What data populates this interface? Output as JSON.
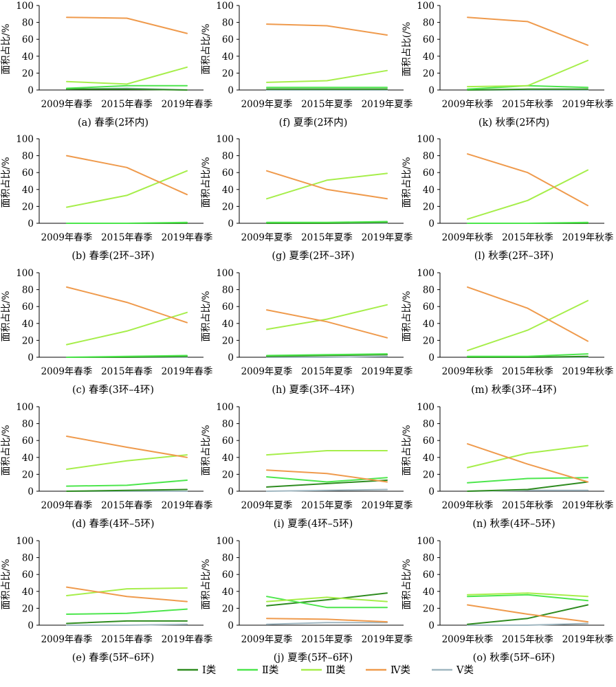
{
  "colors": {
    "I": "#2e8b1f",
    "II": "#4ce64c",
    "III": "#a6ee4a",
    "IV": "#ef9a4c",
    "V": "#9fb6c0"
  },
  "legend": [
    {
      "key": "I",
      "label": "Ⅰ类"
    },
    {
      "key": "II",
      "label": "Ⅱ类"
    },
    {
      "key": "III",
      "label": "Ⅲ类"
    },
    {
      "key": "IV",
      "label": "Ⅳ类"
    },
    {
      "key": "V",
      "label": "Ⅴ类"
    }
  ],
  "chart_data": [
    {
      "type": "line",
      "caption": "(a) 春季(2环内)",
      "ylabel": "面积占比/%",
      "ylim": [
        0,
        100
      ],
      "yticks": [
        "0",
        "20",
        "40",
        "60",
        "80",
        "100"
      ],
      "categories": [
        "2009年春季",
        "2015年春季",
        "2019年春季"
      ],
      "series": [
        {
          "name": "Ⅰ类",
          "values": [
            1,
            1,
            0
          ]
        },
        {
          "name": "Ⅱ类",
          "values": [
            2,
            5,
            5
          ]
        },
        {
          "name": "Ⅲ类",
          "values": [
            10,
            7,
            27
          ]
        },
        {
          "name": "Ⅳ类",
          "values": [
            86,
            85,
            67
          ]
        },
        {
          "name": "Ⅴ类",
          "values": [
            1,
            2,
            0
          ]
        }
      ]
    },
    {
      "type": "line",
      "caption": "(f) 夏季(2环内)",
      "ylabel": "面积占比/%",
      "ylim": [
        0,
        100
      ],
      "yticks": [
        "0",
        "20",
        "40",
        "60",
        "80",
        "100"
      ],
      "categories": [
        "2009年夏季",
        "2015年夏季",
        "2019年夏季"
      ],
      "series": [
        {
          "name": "Ⅰ类",
          "values": [
            1,
            1,
            1
          ]
        },
        {
          "name": "Ⅱ类",
          "values": [
            3,
            3,
            3
          ]
        },
        {
          "name": "Ⅲ类",
          "values": [
            9,
            11,
            23
          ]
        },
        {
          "name": "Ⅳ类",
          "values": [
            78,
            76,
            65
          ]
        },
        {
          "name": "Ⅴ类",
          "values": [
            0,
            0,
            0
          ]
        }
      ]
    },
    {
      "type": "line",
      "caption": "(k) 秋季(2环内)",
      "ylabel": "面积占比(/%",
      "ylim": [
        0,
        100
      ],
      "yticks": [
        "0",
        "20",
        "40",
        "60",
        "80",
        "100"
      ],
      "categories": [
        "2009年秋季",
        "2015年秋季",
        "2019年秋季"
      ],
      "series": [
        {
          "name": "Ⅰ类",
          "values": [
            0,
            1,
            1
          ]
        },
        {
          "name": "Ⅱ类",
          "values": [
            1,
            5,
            3
          ]
        },
        {
          "name": "Ⅲ类",
          "values": [
            4,
            5,
            35
          ]
        },
        {
          "name": "Ⅳ类",
          "values": [
            86,
            81,
            53
          ]
        },
        {
          "name": "Ⅴ类",
          "values": [
            0,
            0,
            0
          ]
        }
      ]
    },
    {
      "type": "line",
      "caption": "(b) 春季(2环–3环)",
      "ylabel": "面积占比/%",
      "ylim": [
        0,
        100
      ],
      "yticks": [
        "0",
        "20",
        "40",
        "60",
        "80",
        "100"
      ],
      "categories": [
        "2009年春季",
        "2015年春季",
        "2019年春季"
      ],
      "series": [
        {
          "name": "Ⅰ类",
          "values": [
            0,
            0,
            0
          ]
        },
        {
          "name": "Ⅱ类",
          "values": [
            0,
            0,
            1
          ]
        },
        {
          "name": "Ⅲ类",
          "values": [
            19,
            33,
            62
          ]
        },
        {
          "name": "Ⅳ类",
          "values": [
            80,
            66,
            34
          ]
        },
        {
          "name": "Ⅴ类",
          "values": [
            0,
            0,
            0
          ]
        }
      ]
    },
    {
      "type": "line",
      "caption": "(g) 夏季(2环–3环)",
      "ylabel": "面积占比/%",
      "ylim": [
        0,
        100
      ],
      "yticks": [
        "0",
        "20",
        "40",
        "60",
        "80",
        "100"
      ],
      "categories": [
        "2009年夏季",
        "2015年夏季",
        "2019年夏季"
      ],
      "series": [
        {
          "name": "Ⅰ类",
          "values": [
            0,
            0,
            1
          ]
        },
        {
          "name": "Ⅱ类",
          "values": [
            1,
            1,
            2
          ]
        },
        {
          "name": "Ⅲ类",
          "values": [
            29,
            51,
            59
          ]
        },
        {
          "name": "Ⅳ类",
          "values": [
            62,
            40,
            29
          ]
        },
        {
          "name": "Ⅴ类",
          "values": [
            0,
            0,
            0
          ]
        }
      ]
    },
    {
      "type": "line",
      "caption": "(l) 秋季(2环–3环)",
      "ylabel": "面积占比/%",
      "ylim": [
        0,
        100
      ],
      "yticks": [
        "0",
        "20",
        "40",
        "60",
        "80",
        "100"
      ],
      "categories": [
        "2009年秋季",
        "2015年秋季",
        "2019年秋季"
      ],
      "series": [
        {
          "name": "Ⅰ类",
          "values": [
            0,
            0,
            0
          ]
        },
        {
          "name": "Ⅱ类",
          "values": [
            0,
            0,
            1
          ]
        },
        {
          "name": "Ⅲ类",
          "values": [
            5,
            27,
            63
          ]
        },
        {
          "name": "Ⅳ类",
          "values": [
            82,
            60,
            21
          ]
        },
        {
          "name": "Ⅴ类",
          "values": [
            0,
            0,
            0
          ]
        }
      ]
    },
    {
      "type": "line",
      "caption": "(c) 春季(3环–4环)",
      "ylabel": "面积占比/%",
      "ylim": [
        0,
        100
      ],
      "yticks": [
        "0",
        "20",
        "40",
        "60",
        "80",
        "100"
      ],
      "categories": [
        "2009年春季",
        "2015年春季",
        "2019年春季"
      ],
      "series": [
        {
          "name": "Ⅰ类",
          "values": [
            0,
            0,
            1
          ]
        },
        {
          "name": "Ⅱ类",
          "values": [
            0,
            1,
            2
          ]
        },
        {
          "name": "Ⅲ类",
          "values": [
            15,
            31,
            53
          ]
        },
        {
          "name": "Ⅳ类",
          "values": [
            83,
            65,
            41
          ]
        },
        {
          "name": "Ⅴ类",
          "values": [
            0,
            0,
            0
          ]
        }
      ]
    },
    {
      "type": "line",
      "caption": "(h) 夏季(3环–4环)",
      "ylabel": "面积占比/%",
      "ylim": [
        0,
        100
      ],
      "yticks": [
        "0",
        "20",
        "40",
        "60",
        "80",
        "100"
      ],
      "categories": [
        "2009年夏季",
        "2015年夏季",
        "2019年夏季"
      ],
      "series": [
        {
          "name": "Ⅰ类",
          "values": [
            1,
            2,
            3
          ]
        },
        {
          "name": "Ⅱ类",
          "values": [
            2,
            3,
            4
          ]
        },
        {
          "name": "Ⅲ类",
          "values": [
            33,
            45,
            62
          ]
        },
        {
          "name": "Ⅳ类",
          "values": [
            56,
            42,
            23
          ]
        },
        {
          "name": "Ⅴ类",
          "values": [
            0,
            0,
            1
          ]
        }
      ]
    },
    {
      "type": "line",
      "caption": "(m) 秋季(3环–4环)",
      "ylabel": "面积占比/%",
      "ylim": [
        0,
        100
      ],
      "yticks": [
        "0",
        "20",
        "40",
        "60",
        "80",
        "100"
      ],
      "categories": [
        "2009年秋季",
        "2015年秋季",
        "2019年秋季"
      ],
      "series": [
        {
          "name": "Ⅰ类",
          "values": [
            0,
            0,
            1
          ]
        },
        {
          "name": "Ⅱ类",
          "values": [
            1,
            1,
            4
          ]
        },
        {
          "name": "Ⅲ类",
          "values": [
            8,
            32,
            67
          ]
        },
        {
          "name": "Ⅳ类",
          "values": [
            83,
            58,
            19
          ]
        },
        {
          "name": "Ⅴ类",
          "values": [
            0,
            0,
            0
          ]
        }
      ]
    },
    {
      "type": "line",
      "caption": "(d) 春季(4环–5环)",
      "ylabel": "面积占比/%",
      "ylim": [
        0,
        100
      ],
      "yticks": [
        "0",
        "20",
        "40",
        "60",
        "80",
        "100"
      ],
      "categories": [
        "2009年春季",
        "2015年春季",
        "2019年春季"
      ],
      "series": [
        {
          "name": "Ⅰ类",
          "values": [
            0,
            1,
            2
          ]
        },
        {
          "name": "Ⅱ类",
          "values": [
            6,
            7,
            13
          ]
        },
        {
          "name": "Ⅲ类",
          "values": [
            26,
            36,
            43
          ]
        },
        {
          "name": "Ⅳ类",
          "values": [
            65,
            52,
            40
          ]
        },
        {
          "name": "Ⅴ类",
          "values": [
            0,
            0,
            0
          ]
        }
      ]
    },
    {
      "type": "line",
      "caption": "(i) 夏季(4环–5环)",
      "ylabel": "面积占比/%",
      "ylim": [
        0,
        100
      ],
      "yticks": [
        "0",
        "20",
        "40",
        "60",
        "80",
        "100"
      ],
      "categories": [
        "2009年夏季",
        "2015年夏季",
        "2019年夏季"
      ],
      "series": [
        {
          "name": "Ⅰ类",
          "values": [
            5,
            9,
            13
          ]
        },
        {
          "name": "Ⅱ类",
          "values": [
            17,
            11,
            16
          ]
        },
        {
          "name": "Ⅲ类",
          "values": [
            43,
            48,
            48
          ]
        },
        {
          "name": "Ⅳ类",
          "values": [
            25,
            21,
            11
          ]
        },
        {
          "name": "Ⅴ类",
          "values": [
            0,
            1,
            2
          ]
        }
      ]
    },
    {
      "type": "line",
      "caption": "(n) 秋季(4环–5环)",
      "ylabel": "面积占比/%",
      "ylim": [
        0,
        100
      ],
      "yticks": [
        "0",
        "20",
        "40",
        "60",
        "80",
        "100"
      ],
      "categories": [
        "2009年秋季",
        "2015年秋季",
        "2019年秋季"
      ],
      "series": [
        {
          "name": "Ⅰ类",
          "values": [
            0,
            2,
            11
          ]
        },
        {
          "name": "Ⅱ类",
          "values": [
            10,
            15,
            16
          ]
        },
        {
          "name": "Ⅲ类",
          "values": [
            28,
            45,
            54
          ]
        },
        {
          "name": "Ⅳ类",
          "values": [
            56,
            32,
            11
          ]
        },
        {
          "name": "Ⅴ类",
          "values": [
            0,
            1,
            1
          ]
        }
      ]
    },
    {
      "type": "line",
      "caption": "(e) 春季(5环–6环)",
      "ylabel": "面积占比/%",
      "ylim": [
        0,
        100
      ],
      "yticks": [
        "0",
        "20",
        "40",
        "60",
        "80",
        "100"
      ],
      "categories": [
        "2009年春季",
        "2015年春季",
        "2019年春季"
      ],
      "series": [
        {
          "name": "Ⅰ类",
          "values": [
            2,
            5,
            5
          ]
        },
        {
          "name": "Ⅱ类",
          "values": [
            13,
            14,
            19
          ]
        },
        {
          "name": "Ⅲ类",
          "values": [
            35,
            43,
            44
          ]
        },
        {
          "name": "Ⅳ类",
          "values": [
            45,
            34,
            28
          ]
        },
        {
          "name": "Ⅴ类",
          "values": [
            0,
            0,
            1
          ]
        }
      ]
    },
    {
      "type": "line",
      "caption": "(j) 夏季(5环–6环)",
      "ylabel": "面积占比/%",
      "ylim": [
        0,
        100
      ],
      "yticks": [
        "0",
        "20",
        "40",
        "60",
        "80",
        "100"
      ],
      "categories": [
        "2009年夏季",
        "2015年夏季",
        "2019年夏季"
      ],
      "series": [
        {
          "name": "Ⅰ类",
          "values": [
            23,
            30,
            38
          ]
        },
        {
          "name": "Ⅱ类",
          "values": [
            34,
            21,
            21
          ]
        },
        {
          "name": "Ⅲ类",
          "values": [
            28,
            33,
            28
          ]
        },
        {
          "name": "Ⅳ类",
          "values": [
            8,
            7,
            4
          ]
        },
        {
          "name": "Ⅴ类",
          "values": [
            1,
            3,
            3
          ]
        }
      ]
    },
    {
      "type": "line",
      "caption": "(o) 秋季(5环–6环)",
      "ylabel": "面积占比/%",
      "ylim": [
        0,
        100
      ],
      "yticks": [
        "0",
        "20",
        "40",
        "60",
        "80",
        "100"
      ],
      "categories": [
        "2009年秋季",
        "2015年秋季",
        "2019年秋季"
      ],
      "series": [
        {
          "name": "Ⅰ类",
          "values": [
            1,
            8,
            24
          ]
        },
        {
          "name": "Ⅱ类",
          "values": [
            34,
            36,
            29
          ]
        },
        {
          "name": "Ⅲ类",
          "values": [
            36,
            38,
            34
          ]
        },
        {
          "name": "Ⅳ类",
          "values": [
            24,
            13,
            4
          ]
        },
        {
          "name": "Ⅴ类",
          "values": [
            0,
            0,
            2
          ]
        }
      ]
    }
  ]
}
